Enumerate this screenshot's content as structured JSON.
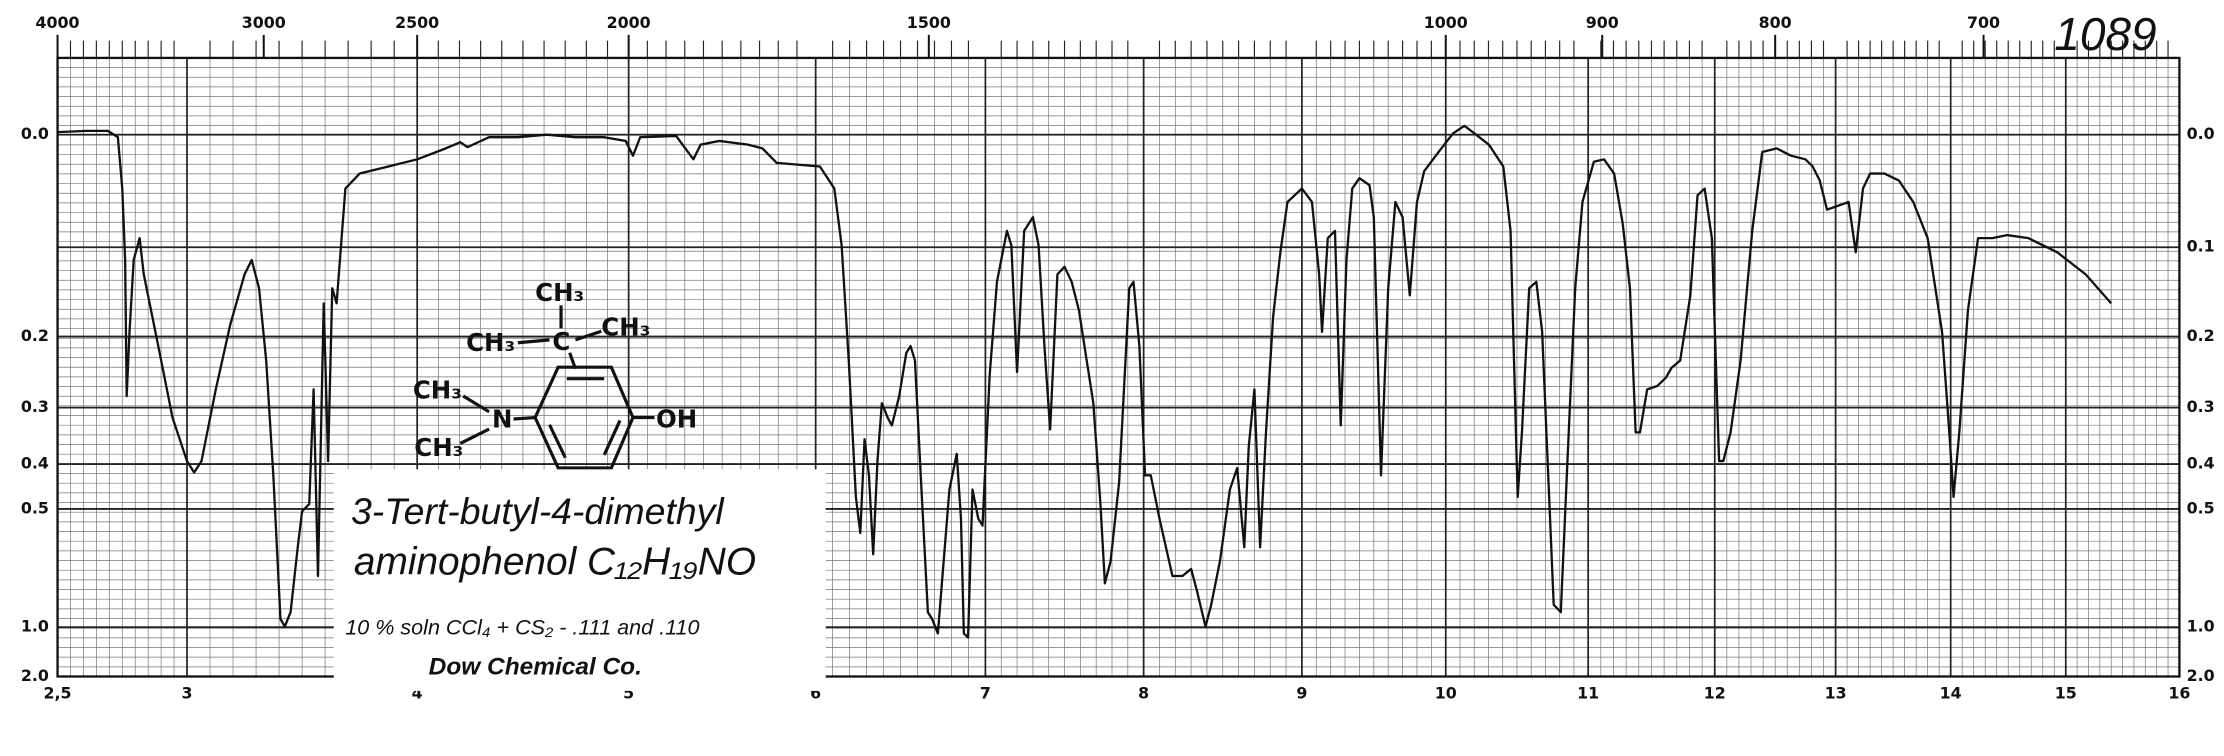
{
  "chart_data": {
    "type": "line",
    "title": "1089",
    "annotations": [
      "3-Tert-butyl-4-dimethyl",
      "aminophenol C₁₂H₁₉NO",
      "10 % soln CCl₄ + CS₂ - .111 and .110",
      "Dow Chemical Co."
    ],
    "structure_labels": [
      "CH₃",
      "CH₃",
      "C",
      "CH₃",
      "CH₃",
      "N",
      "CH₃",
      "OH"
    ],
    "y_scale": "absorbance",
    "xlim": [
      2.5,
      16
    ],
    "xticks": [
      {
        "value": 2.5,
        "label": "2,5"
      },
      3,
      4,
      5,
      6,
      7,
      8,
      9,
      10,
      11,
      12,
      13,
      14,
      15,
      16
    ],
    "x2ticks": [
      4000,
      3000,
      2500,
      2000,
      1500,
      1000,
      900,
      800,
      700
    ],
    "ylim": [
      -0.057,
      2
    ],
    "yticks": [
      {
        "value": 0,
        "label": "0.0"
      },
      0.2,
      0.3,
      0.4,
      0.5,
      {
        "value": 1,
        "label": "1.0"
      },
      {
        "value": 2,
        "label": "2.0"
      }
    ],
    "y2lim": [
      -0.057,
      2
    ],
    "y2ticks": [
      {
        "value": 0,
        "label": "0.0"
      },
      0.1,
      0.2,
      0.3,
      0.4,
      0.5,
      {
        "value": 1,
        "label": "1.0"
      },
      {
        "value": 2,
        "label": "2.0"
      }
    ],
    "grid": true,
    "color": "#111111",
    "x": [
      2.5,
      2.611,
      2.694,
      2.733,
      2.75,
      2.761,
      2.767,
      2.778,
      2.794,
      2.817,
      2.833,
      2.889,
      2.944,
      3.0,
      3.031,
      3.063,
      3.125,
      3.188,
      3.25,
      3.281,
      3.313,
      3.344,
      3.375,
      3.406,
      3.425,
      3.45,
      3.481,
      3.5,
      3.531,
      3.55,
      3.569,
      3.594,
      3.613,
      3.631,
      3.65,
      3.688,
      3.75,
      3.875,
      4.0,
      4.136,
      4.204,
      4.238,
      4.34,
      4.476,
      4.612,
      4.748,
      4.884,
      4.986,
      5.023,
      5.062,
      5.254,
      5.346,
      5.385,
      5.485,
      5.638,
      5.715,
      5.792,
      6.025,
      6.11,
      6.153,
      6.195,
      6.237,
      6.263,
      6.288,
      6.314,
      6.339,
      6.364,
      6.39,
      6.424,
      6.449,
      6.492,
      6.534,
      6.559,
      6.585,
      6.619,
      6.661,
      6.686,
      6.72,
      6.754,
      6.788,
      6.831,
      6.856,
      6.873,
      6.898,
      6.924,
      6.958,
      6.983,
      7.027,
      7.073,
      7.136,
      7.164,
      7.2,
      7.245,
      7.3,
      7.336,
      7.373,
      7.409,
      7.455,
      7.5,
      7.545,
      7.591,
      7.682,
      7.727,
      7.755,
      7.791,
      7.845,
      7.909,
      7.936,
      7.973,
      8.009,
      8.045,
      8.1,
      8.182,
      8.245,
      8.3,
      8.336,
      8.391,
      8.427,
      8.482,
      8.545,
      8.591,
      8.636,
      8.664,
      8.7,
      8.736,
      8.773,
      8.818,
      8.864,
      8.909,
      9.0,
      9.07,
      9.12,
      9.14,
      9.18,
      9.23,
      9.27,
      9.31,
      9.35,
      9.4,
      9.47,
      9.5,
      9.55,
      9.6,
      9.65,
      9.7,
      9.75,
      9.8,
      9.85,
      9.95,
      10.051,
      10.131,
      10.202,
      10.303,
      10.404,
      10.455,
      10.505,
      10.535,
      10.586,
      10.636,
      10.677,
      10.758,
      10.808,
      10.859,
      10.909,
      10.96,
      11.045,
      11.125,
      11.205,
      11.273,
      11.33,
      11.375,
      11.409,
      11.466,
      11.545,
      11.614,
      11.659,
      11.727,
      11.807,
      11.864,
      11.92,
      11.977,
      12.036,
      12.071,
      12.131,
      12.214,
      12.31,
      12.393,
      12.512,
      12.631,
      12.75,
      12.81,
      12.869,
      12.929,
      13.113,
      13.175,
      13.238,
      13.3,
      13.425,
      13.55,
      13.675,
      13.8,
      13.925,
      13.988,
      14.025,
      14.075,
      14.15,
      14.238,
      14.363,
      14.488,
      14.675,
      14.925,
      15.175,
      15.4
    ],
    "values": [
      -0.002,
      -0.003,
      -0.003,
      0.002,
      0.045,
      0.113,
      0.282,
      0.194,
      0.113,
      0.091,
      0.128,
      0.212,
      0.316,
      0.394,
      0.417,
      0.394,
      0.272,
      0.185,
      0.128,
      0.113,
      0.143,
      0.231,
      0.423,
      0.939,
      0.995,
      0.894,
      0.609,
      0.506,
      0.488,
      0.272,
      0.713,
      0.16,
      0.394,
      0.143,
      0.16,
      0.045,
      0.032,
      0.026,
      0.02,
      0.011,
      0.006,
      0.01,
      0.002,
      0.002,
      0,
      0.002,
      0.002,
      0.005,
      0.017,
      0.002,
      0.001,
      0.02,
      0.008,
      0.005,
      0.008,
      0.011,
      0.023,
      0.026,
      0.045,
      0.098,
      0.231,
      0.471,
      0.565,
      0.353,
      0.423,
      0.632,
      0.394,
      0.293,
      0.316,
      0.329,
      0.282,
      0.221,
      0.212,
      0.231,
      0.423,
      0.894,
      0.939,
      1.052,
      0.657,
      0.454,
      0.38,
      0.525,
      1.052,
      1.09,
      0.454,
      0.525,
      0.544,
      0.251,
      0.136,
      0.084,
      0.098,
      0.247,
      0.084,
      0.071,
      0.098,
      0.212,
      0.336,
      0.128,
      0.12,
      0.136,
      0.168,
      0.293,
      0.488,
      0.744,
      0.657,
      0.438,
      0.143,
      0.136,
      0.212,
      0.423,
      0.423,
      0.525,
      0.713,
      0.713,
      0.685,
      0.776,
      0.995,
      0.85,
      0.657,
      0.454,
      0.408,
      0.609,
      0.367,
      0.272,
      0.609,
      0.341,
      0.176,
      0.105,
      0.057,
      0.045,
      0.057,
      0.128,
      0.194,
      0.091,
      0.084,
      0.329,
      0.113,
      0.045,
      0.036,
      0.042,
      0.071,
      0.423,
      0.143,
      0.057,
      0.071,
      0.151,
      0.057,
      0.03,
      0.014,
      -0.001,
      -0.007,
      -0.001,
      0.008,
      0.026,
      0.084,
      0.471,
      0.341,
      0.143,
      0.136,
      0.194,
      0.85,
      0.894,
      0.367,
      0.143,
      0.057,
      0.022,
      0.02,
      0.032,
      0.077,
      0.143,
      0.341,
      0.341,
      0.272,
      0.267,
      0.255,
      0.241,
      0.231,
      0.151,
      0.051,
      0.045,
      0.091,
      0.394,
      0.394,
      0.341,
      0.231,
      0.084,
      0.014,
      0.011,
      0.017,
      0.02,
      0.026,
      0.038,
      0.064,
      0.057,
      0.105,
      0.045,
      0.032,
      0.032,
      0.038,
      0.057,
      0.091,
      0.194,
      0.341,
      0.471,
      0.341,
      0.168,
      0.091,
      0.091,
      0.088,
      0.091,
      0.105,
      0.128,
      0.16
    ]
  }
}
